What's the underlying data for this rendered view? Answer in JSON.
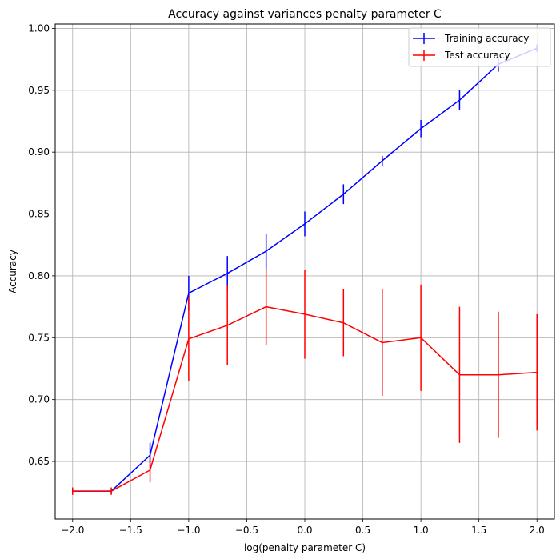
{
  "chart_data": {
    "type": "line",
    "title": "Accuracy against variances penalty parameter C",
    "xlabel": "log(penalty parameter C)",
    "ylabel": "Accuracy",
    "xlim": [
      -2.15,
      2.15
    ],
    "ylim": [
      0.6035,
      1.0035
    ],
    "xticks": [
      -2.0,
      -1.5,
      -1.0,
      -0.5,
      0.0,
      0.5,
      1.0,
      1.5,
      2.0
    ],
    "xtick_labels": [
      "−2.0",
      "−1.5",
      "−1.0",
      "−0.5",
      "0.0",
      "0.5",
      "1.0",
      "1.5",
      "2.0"
    ],
    "yticks": [
      0.65,
      0.7,
      0.75,
      0.8,
      0.85,
      0.9,
      0.95,
      1.0
    ],
    "ytick_labels": [
      "0.65",
      "0.70",
      "0.75",
      "0.80",
      "0.85",
      "0.90",
      "0.95",
      "1.00"
    ],
    "grid": true,
    "legend_position": "top-right",
    "x": [
      -2.0,
      -1.667,
      -1.333,
      -1.0,
      -0.667,
      -0.333,
      0.0,
      0.333,
      0.667,
      1.0,
      1.333,
      1.667,
      2.0
    ],
    "series": [
      {
        "name": "Training accuracy",
        "color": "#0000ff",
        "values": [
          0.626,
          0.626,
          0.655,
          0.786,
          0.802,
          0.82,
          0.842,
          0.866,
          0.893,
          0.919,
          0.942,
          0.971,
          0.984
        ],
        "errors": [
          0.002,
          0.002,
          0.01,
          0.014,
          0.014,
          0.014,
          0.01,
          0.008,
          0.004,
          0.007,
          0.008,
          0.006,
          0.003
        ]
      },
      {
        "name": "Test accuracy",
        "color": "#ff0000",
        "values": [
          0.626,
          0.626,
          0.643,
          0.749,
          0.76,
          0.775,
          0.769,
          0.762,
          0.746,
          0.75,
          0.72,
          0.72,
          0.722
        ],
        "errors": [
          0.003,
          0.003,
          0.01,
          0.034,
          0.032,
          0.031,
          0.036,
          0.027,
          0.043,
          0.043,
          0.055,
          0.051,
          0.047
        ]
      }
    ]
  }
}
